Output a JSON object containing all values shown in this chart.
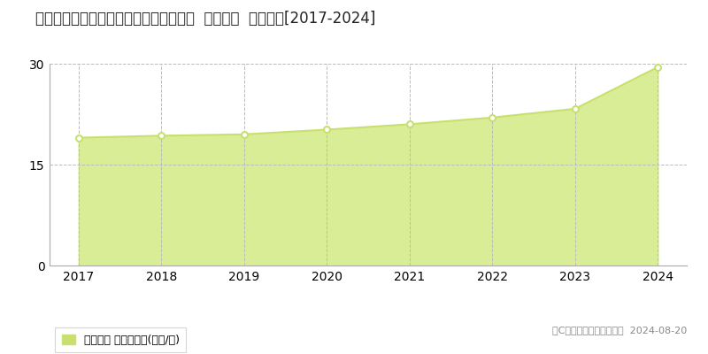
{
  "title": "宮城県仙台市青葉区栗生６丁目８番１外  地価公示  地価推移[2017-2024]",
  "years": [
    2017,
    2018,
    2019,
    2020,
    2021,
    2022,
    2023,
    2024
  ],
  "values": [
    19.0,
    19.3,
    19.5,
    20.2,
    21.0,
    22.0,
    23.3,
    29.5
  ],
  "ylim": [
    0,
    30
  ],
  "yticks": [
    0,
    15,
    30
  ],
  "line_color": "#c8e06e",
  "fill_color": "#d8ed96",
  "marker_color": "#c8e06e",
  "marker_face": "#ffffff",
  "grid_color": "#bbbbbb",
  "bg_color": "#ffffff",
  "legend_label": "地価公示 平均坪単価(万円/坪)",
  "legend_color": "#c8e06e",
  "copyright_text": "（C）土地価格ドットコム  2024-08-20",
  "title_fontsize": 12,
  "axis_fontsize": 10,
  "legend_fontsize": 9,
  "copyright_fontsize": 8
}
